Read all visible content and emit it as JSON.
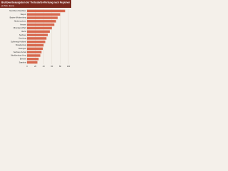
{
  "chart_data": {
    "type": "bar",
    "orientation": "horizontal",
    "title": "Bruttowerbeausgaben der Tierbedarfs-Werbung nach Regionen",
    "subtitle": "(in Mio. Euro)",
    "categories": [
      "Nordrhein-Westfalen",
      "Bayern",
      "Baden-Württemberg",
      "Niedersachsen",
      "Hessen",
      "Rheinland-Pfalz",
      "Berlin",
      "Sachsen",
      "Hamburg",
      "Schleswig-Holstein",
      "Brandenburg",
      "Thüringen",
      "Sachsen-Anhalt",
      "Mecklenburg-Vorp.",
      "Bremen",
      "Saarland"
    ],
    "values": [
      92,
      80,
      74,
      70,
      66,
      60,
      55,
      50,
      47,
      44,
      40,
      38,
      35,
      32,
      28,
      25
    ],
    "color": "#d8684e",
    "xlim": [
      0,
      100
    ],
    "xticks": [
      0,
      20,
      40,
      60,
      80,
      100
    ],
    "grid": true
  }
}
